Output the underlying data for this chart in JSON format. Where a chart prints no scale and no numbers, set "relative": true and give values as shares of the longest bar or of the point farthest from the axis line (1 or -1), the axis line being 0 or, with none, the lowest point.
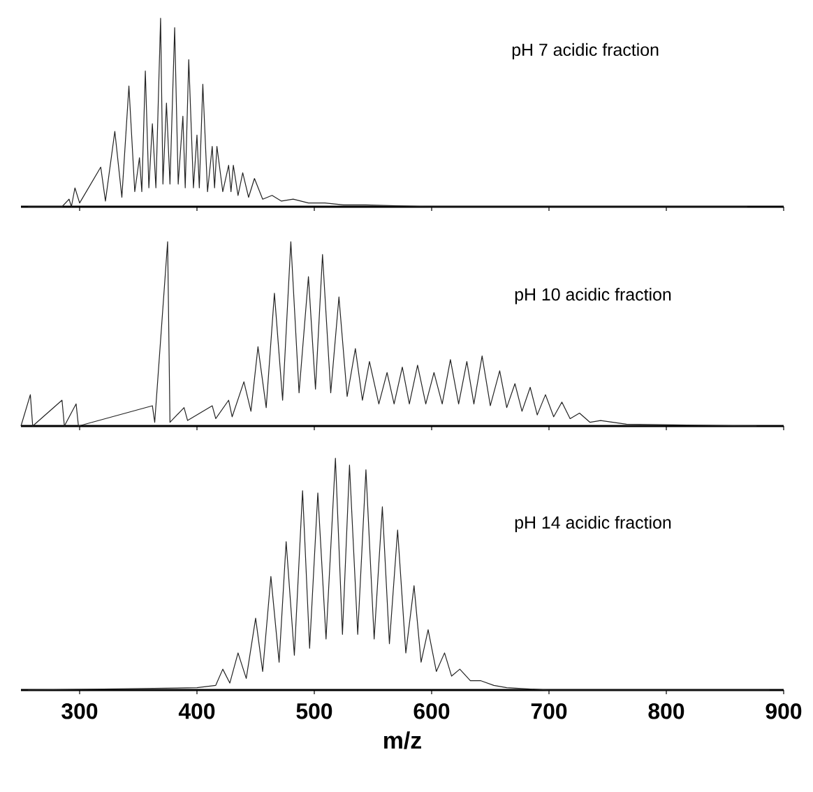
{
  "chart_data": [
    {
      "type": "line",
      "title": "pH 7 acidic fraction",
      "relative": true,
      "xlim": [
        250,
        900
      ],
      "xticks": [
        300,
        400,
        500,
        600,
        700,
        800,
        900
      ],
      "tick_labels": false,
      "series": [
        {
          "color": "#222222",
          "x": [
            256,
            285,
            291,
            293,
            296,
            300,
            318,
            322,
            330,
            336,
            342,
            347,
            351,
            353,
            356,
            359,
            362,
            365,
            369,
            371,
            374,
            377,
            381,
            384,
            388,
            390,
            393,
            397,
            400,
            402,
            405,
            409,
            413,
            415,
            417,
            422,
            427,
            429,
            431,
            435,
            439,
            444,
            449,
            456,
            464,
            472,
            482,
            495,
            509,
            525,
            544,
            600,
            869
          ],
          "values": [
            0,
            0,
            0.04,
            0,
            0.1,
            0.02,
            0.21,
            0.03,
            0.4,
            0.05,
            0.64,
            0.08,
            0.26,
            0.08,
            0.72,
            0.1,
            0.44,
            0.1,
            1.0,
            0.12,
            0.55,
            0.12,
            0.95,
            0.12,
            0.48,
            0.1,
            0.78,
            0.1,
            0.38,
            0.1,
            0.65,
            0.08,
            0.32,
            0.1,
            0.32,
            0.08,
            0.22,
            0.08,
            0.22,
            0.06,
            0.18,
            0.05,
            0.15,
            0.04,
            0.06,
            0.03,
            0.04,
            0.02,
            0.02,
            0.01,
            0.01,
            0,
            0
          ]
        }
      ]
    },
    {
      "type": "line",
      "title": "pH 10 acidic fraction",
      "relative": true,
      "xlim": [
        250,
        900
      ],
      "xticks": [
        300,
        400,
        500,
        600,
        700,
        800,
        900
      ],
      "tick_labels": false,
      "series": [
        {
          "color": "#222222",
          "x": [
            250,
            258,
            260,
            285,
            287,
            297,
            299,
            362,
            364,
            375,
            377,
            389,
            392,
            413,
            416,
            427,
            430,
            440,
            446,
            452,
            459,
            466,
            473,
            480,
            487,
            495,
            501,
            507,
            514,
            521,
            528,
            535,
            541,
            547,
            555,
            562,
            568,
            575,
            581,
            588,
            595,
            602,
            609,
            616,
            623,
            630,
            636,
            643,
            650,
            658,
            664,
            671,
            677,
            684,
            690,
            697,
            704,
            711,
            718,
            726,
            735,
            744,
            766,
            877
          ],
          "values": [
            0,
            0.17,
            0,
            0.14,
            0,
            0.12,
            0,
            0.11,
            0.02,
            1.0,
            0.02,
            0.1,
            0.03,
            0.11,
            0.04,
            0.14,
            0.05,
            0.24,
            0.08,
            0.43,
            0.1,
            0.72,
            0.14,
            1.0,
            0.18,
            0.81,
            0.2,
            0.93,
            0.18,
            0.7,
            0.16,
            0.42,
            0.14,
            0.35,
            0.12,
            0.29,
            0.12,
            0.32,
            0.12,
            0.33,
            0.12,
            0.29,
            0.12,
            0.36,
            0.12,
            0.35,
            0.12,
            0.38,
            0.11,
            0.3,
            0.1,
            0.23,
            0.08,
            0.21,
            0.06,
            0.17,
            0.05,
            0.13,
            0.04,
            0.07,
            0.02,
            0.03,
            0.01,
            0
          ]
        }
      ]
    },
    {
      "type": "line",
      "title": "pH 14 acidic fraction",
      "xlabel": "m/z",
      "relative": true,
      "xlim": [
        250,
        900
      ],
      "xticks": [
        300,
        400,
        500,
        600,
        700,
        800,
        900
      ],
      "series": [
        {
          "color": "#222222",
          "x": [
            256,
            400,
            416,
            422,
            428,
            435,
            442,
            450,
            456,
            463,
            470,
            476,
            483,
            490,
            496,
            503,
            510,
            518,
            524,
            530,
            537,
            544,
            551,
            558,
            564,
            571,
            578,
            585,
            591,
            597,
            604,
            611,
            617,
            624,
            633,
            642,
            653,
            664,
            700,
            888
          ],
          "values": [
            0,
            0.01,
            0.02,
            0.09,
            0.03,
            0.16,
            0.05,
            0.31,
            0.08,
            0.49,
            0.12,
            0.64,
            0.15,
            0.86,
            0.18,
            0.85,
            0.22,
            1.0,
            0.24,
            0.97,
            0.24,
            0.95,
            0.22,
            0.79,
            0.2,
            0.69,
            0.16,
            0.45,
            0.12,
            0.26,
            0.08,
            0.16,
            0.06,
            0.09,
            0.04,
            0.04,
            0.02,
            0.01,
            0,
            0
          ]
        }
      ]
    }
  ]
}
